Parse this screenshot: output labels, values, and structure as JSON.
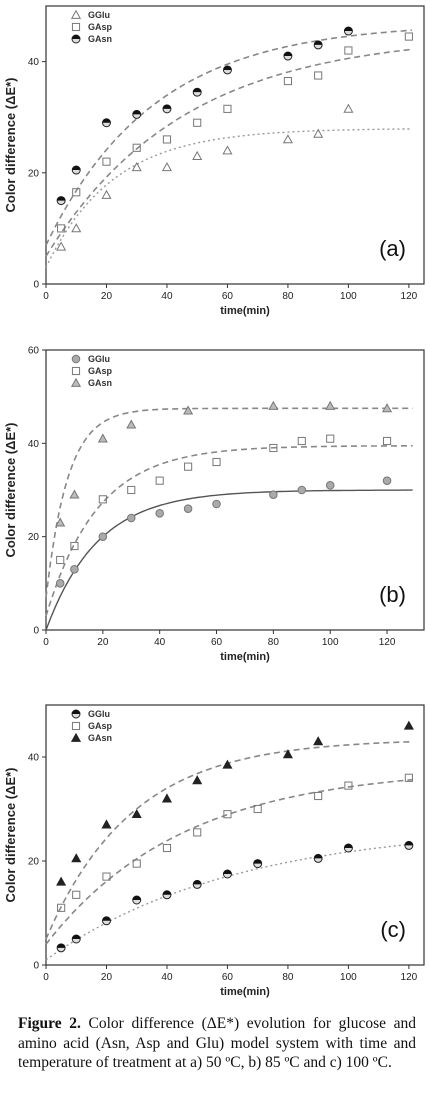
{
  "chart_data": [
    {
      "type": "scatter",
      "panel_label": "(a)",
      "xlabel": "time(min)",
      "ylabel": "Color difference (ΔE*)",
      "xlim": [
        0,
        125
      ],
      "ylim": [
        0,
        50
      ],
      "xticks": [
        0,
        20,
        40,
        60,
        80,
        100,
        120
      ],
      "yticks": [
        0,
        20,
        40
      ],
      "legend_position": "top-left",
      "series": [
        {
          "name": "GGlu",
          "marker": "triangle-open",
          "curve_style": "dotted",
          "x": [
            5,
            10,
            20,
            30,
            40,
            50,
            60,
            80,
            90,
            100
          ],
          "y": [
            6.7,
            10,
            16,
            21,
            21,
            23,
            24,
            26,
            27,
            31.5
          ],
          "fit": {
            "a": 28,
            "k": 0.045,
            "b": 3
          }
        },
        {
          "name": "GAsp",
          "marker": "square-open",
          "curve_style": "dashed",
          "x": [
            5,
            10,
            20,
            30,
            40,
            50,
            60,
            80,
            90,
            100,
            120
          ],
          "y": [
            10,
            16.5,
            22,
            24.5,
            26,
            29,
            31.5,
            36.5,
            37.5,
            42,
            44.5
          ],
          "fit": {
            "a": 45,
            "k": 0.022,
            "b": 5
          }
        },
        {
          "name": "GAsn",
          "marker": "circle-half",
          "curve_style": "dashed",
          "x": [
            5,
            10,
            20,
            30,
            40,
            50,
            60,
            80,
            90,
            100
          ],
          "y": [
            15,
            20.5,
            29,
            30.5,
            31.5,
            34.5,
            38.5,
            41,
            43,
            45.5
          ],
          "fit": {
            "a": 47,
            "k": 0.028,
            "b": 7
          }
        }
      ]
    },
    {
      "type": "scatter",
      "panel_label": "(b)",
      "xlabel": "time(min)",
      "ylabel": "Color difference (ΔE*)",
      "xlim": [
        0,
        133
      ],
      "ylim": [
        0,
        60
      ],
      "xticks": [
        0,
        20,
        40,
        60,
        80,
        100,
        120
      ],
      "yticks": [
        0,
        20,
        40,
        60
      ],
      "ytick_labels": [
        "0",
        "20",
        "40",
        "60"
      ],
      "legend_position": "top-left",
      "series": [
        {
          "name": "GGlu",
          "marker": "circle-filled-light",
          "curve_style": "solid",
          "x": [
            5,
            10,
            20,
            30,
            40,
            50,
            60,
            80,
            90,
            100,
            120
          ],
          "y": [
            10,
            13,
            20,
            24,
            25,
            26,
            27,
            29,
            30,
            31,
            32
          ],
          "fit": {
            "a": 30,
            "k": 0.055,
            "b": 0
          }
        },
        {
          "name": "GAsp",
          "marker": "square-open",
          "curve_style": "dashed",
          "x": [
            5,
            10,
            20,
            30,
            40,
            50,
            60,
            80,
            90,
            100,
            120
          ],
          "y": [
            15,
            18,
            28,
            30,
            32,
            35,
            36,
            39,
            40.5,
            41,
            40.5
          ],
          "fit": {
            "a": 39.5,
            "k": 0.055,
            "b": 3
          }
        },
        {
          "name": "GAsn",
          "marker": "triangle-filled-light",
          "curve_style": "dashed",
          "x": [
            5,
            10,
            20,
            30,
            50,
            80,
            100,
            120
          ],
          "y": [
            23,
            29,
            41,
            44,
            47,
            48,
            48,
            47.5
          ],
          "fit": {
            "a": 47.5,
            "k": 0.13,
            "b": 7
          }
        }
      ]
    },
    {
      "type": "scatter",
      "panel_label": "(c)",
      "xlabel": "time(min)",
      "ylabel": "Color difference (ΔE*)",
      "xlim": [
        0,
        125
      ],
      "ylim": [
        0,
        50
      ],
      "xticks": [
        0,
        20,
        40,
        60,
        80,
        100,
        120
      ],
      "yticks": [
        0,
        20,
        40
      ],
      "legend_position": "top-left",
      "series": [
        {
          "name": "GGlu",
          "marker": "circle-half",
          "curve_style": "dotted",
          "x": [
            5,
            10,
            20,
            30,
            40,
            50,
            60,
            70,
            90,
            100,
            120
          ],
          "y": [
            3.3,
            5,
            8.5,
            12.5,
            13.5,
            15.5,
            17.5,
            19.5,
            20.5,
            22.5,
            23
          ],
          "fit": {
            "a": 27,
            "k": 0.016,
            "b": 1
          }
        },
        {
          "name": "GAsp",
          "marker": "square-open",
          "curve_style": "dashed",
          "x": [
            5,
            10,
            20,
            30,
            40,
            50,
            60,
            70,
            90,
            100,
            120
          ],
          "y": [
            11,
            13.5,
            17,
            19.5,
            22.5,
            25.5,
            29,
            30,
            32.5,
            34.5,
            36
          ],
          "fit": {
            "a": 38,
            "k": 0.022,
            "b": 4
          }
        },
        {
          "name": "GAsn",
          "marker": "triangle-filled",
          "curve_style": "dashed",
          "x": [
            5,
            10,
            20,
            30,
            40,
            50,
            60,
            80,
            90,
            120
          ],
          "y": [
            16,
            20.5,
            27,
            29,
            32,
            35.5,
            38.5,
            40.5,
            43,
            46
          ],
          "fit": {
            "a": 43.5,
            "k": 0.035,
            "b": 5
          }
        }
      ]
    }
  ],
  "caption": {
    "label": "Figure 2.",
    "text": " Color difference (ΔE*) evolution for glucose and amino acid (Asn, Asp and Glu) model system with time and temperature of treatment at a) 50 ºC, b) 85 ºC and c) 100 ºC."
  }
}
